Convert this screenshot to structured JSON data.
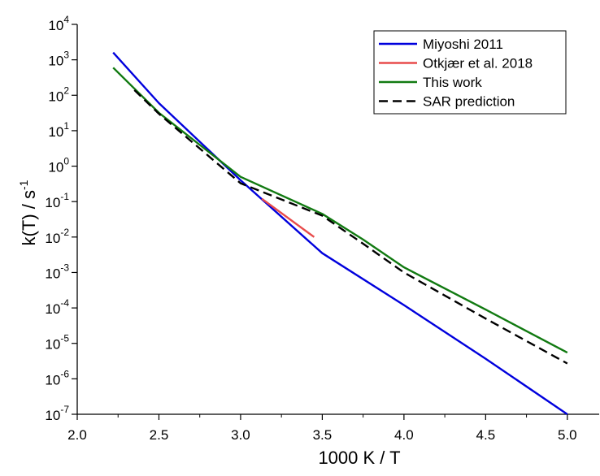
{
  "chart_data": {
    "type": "line",
    "title": "",
    "xlabel": "1000 K / T",
    "ylabel": {
      "base": "k(T) / s",
      "sup": "-1"
    },
    "xlim": [
      2.0,
      5.2
    ],
    "ylim_log10": [
      -7,
      4
    ],
    "yscale": "log",
    "grid": false,
    "legend_position": "top-right",
    "x_ticks": [
      {
        "value": 2.0,
        "label": "2.0"
      },
      {
        "value": 2.5,
        "label": "2.5"
      },
      {
        "value": 3.0,
        "label": "3.0"
      },
      {
        "value": 3.5,
        "label": "3.5"
      },
      {
        "value": 4.0,
        "label": "4.0"
      },
      {
        "value": 4.5,
        "label": "4.5"
      },
      {
        "value": 5.0,
        "label": "5.0"
      }
    ],
    "y_ticks": [
      {
        "exp": 4,
        "base": "10",
        "sup": "4"
      },
      {
        "exp": 3,
        "base": "10",
        "sup": "3"
      },
      {
        "exp": 2,
        "base": "10",
        "sup": "2"
      },
      {
        "exp": 1,
        "base": "10",
        "sup": "1"
      },
      {
        "exp": 0,
        "base": "10",
        "sup": "0"
      },
      {
        "exp": -1,
        "base": "10",
        "sup": "-1"
      },
      {
        "exp": -2,
        "base": "10",
        "sup": "-2"
      },
      {
        "exp": -3,
        "base": "10",
        "sup": "-3"
      },
      {
        "exp": -4,
        "base": "10",
        "sup": "-4"
      },
      {
        "exp": -5,
        "base": "10",
        "sup": "-5"
      },
      {
        "exp": -6,
        "base": "10",
        "sup": "-6"
      },
      {
        "exp": -7,
        "base": "10",
        "sup": "-7"
      }
    ],
    "series": [
      {
        "name": "Miyoshi 2011",
        "color": "#0000dd",
        "dash": "solid",
        "x": [
          2.22,
          2.5,
          3.0,
          3.5,
          4.0,
          4.5,
          5.0
        ],
        "y": [
          1600,
          60,
          0.4,
          0.0035,
          0.00012,
          3.7e-06,
          1e-07
        ]
      },
      {
        "name": "Otkjær et al. 2018",
        "color": "#e84c4c",
        "dash": "solid",
        "x": [
          3.13,
          3.45
        ],
        "y": [
          0.12,
          0.01
        ]
      },
      {
        "name": "This work",
        "color": "#117a11",
        "dash": "solid",
        "x": [
          2.22,
          2.5,
          3.0,
          3.5,
          3.75,
          4.0,
          4.5,
          5.0
        ],
        "y": [
          600,
          32,
          0.5,
          0.045,
          0.0085,
          0.0014,
          9e-05,
          5.5e-06
        ]
      },
      {
        "name": "SAR prediction",
        "color": "#000000",
        "dash": "dashed",
        "x": [
          2.35,
          2.5,
          3.0,
          3.5,
          3.75,
          4.0,
          4.5,
          5.0
        ],
        "y": [
          140,
          30,
          0.33,
          0.04,
          0.0065,
          0.001,
          5e-05,
          2.7e-06
        ]
      }
    ]
  }
}
